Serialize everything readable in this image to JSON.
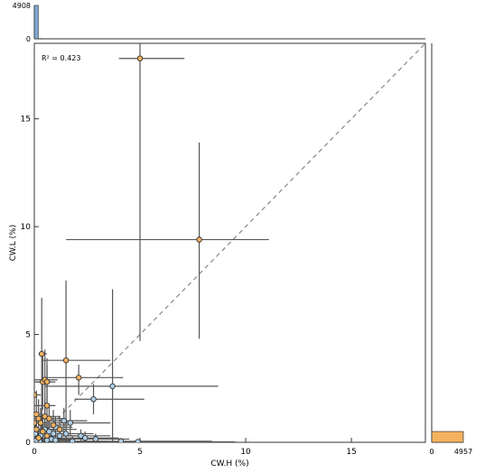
{
  "chart_data": [
    {
      "type": "scatter",
      "xlabel": "CW.H (%)",
      "ylabel": "CW.L (%)",
      "annotation": "R² = 0.423",
      "xlim": [
        0,
        18.5
      ],
      "ylim": [
        0,
        18.5
      ],
      "xticks": [
        0,
        5,
        10,
        15
      ],
      "yticks": [
        0,
        5,
        10,
        15
      ],
      "xtick_labels": [
        "0",
        "5",
        "10",
        "15"
      ],
      "ytick_labels": [
        "0",
        "5",
        "10",
        "15"
      ],
      "identity_line": true,
      "identity_line_style": "dashed",
      "grid": false,
      "colors": {
        "orange": "#f5b25e",
        "blue": "#aecfe8",
        "errorbar": "#555555",
        "marker_edge": "#333333",
        "identity": "#888888"
      },
      "points": [
        {
          "x": 5.0,
          "y": 17.8,
          "xerr": [
            4.0,
            7.1
          ],
          "yerr": [
            4.7,
            18.5
          ],
          "color": "orange"
        },
        {
          "x": 7.8,
          "y": 9.4,
          "xerr": [
            1.5,
            11.1
          ],
          "yerr": [
            4.8,
            13.9
          ],
          "color": "orange"
        },
        {
          "x": 1.5,
          "y": 3.8,
          "xerr": [
            0.4,
            3.6
          ],
          "yerr": [
            0.0,
            7.5
          ],
          "color": "orange"
        },
        {
          "x": 0.35,
          "y": 4.1,
          "xerr": [
            0.2,
            0.6
          ],
          "yerr": [
            0.0,
            6.7
          ],
          "color": "orange"
        },
        {
          "x": 2.1,
          "y": 3.0,
          "xerr": [
            0.5,
            4.2
          ],
          "yerr": [
            2.2,
            3.6
          ],
          "color": "orange"
        },
        {
          "x": 0.4,
          "y": 2.8,
          "xerr": [
            0.0,
            0.8
          ],
          "yerr": [
            1.5,
            4.2
          ],
          "color": "orange"
        },
        {
          "x": 0.5,
          "y": 2.9,
          "xerr": [
            0.0,
            1.1
          ],
          "yerr": [
            0.4,
            4.3
          ],
          "color": "orange"
        },
        {
          "x": 0.6,
          "y": 2.8,
          "xerr": [
            0.1,
            1.0
          ],
          "yerr": [
            1.6,
            3.9
          ],
          "color": "orange"
        },
        {
          "x": 0.6,
          "y": 1.7,
          "xerr": [
            0.0,
            1.0
          ],
          "yerr": [
            0.3,
            3.6
          ],
          "color": "orange"
        },
        {
          "x": 0.0,
          "y": 2.2,
          "xerr": [
            0.0,
            0.3
          ],
          "yerr": [
            0.5,
            3.2
          ],
          "color": "orange"
        },
        {
          "x": 0.1,
          "y": 1.3,
          "xerr": [
            0.0,
            0.4
          ],
          "yerr": [
            0.0,
            2.4
          ],
          "color": "orange"
        },
        {
          "x": 0.2,
          "y": 1.1,
          "xerr": [
            0.0,
            0.5
          ],
          "yerr": [
            0.0,
            2.0
          ],
          "color": "orange"
        },
        {
          "x": 0.3,
          "y": 0.9,
          "xerr": [
            0.0,
            0.7
          ],
          "yerr": [
            0.2,
            1.6
          ],
          "color": "orange"
        },
        {
          "x": 0.5,
          "y": 1.2,
          "xerr": [
            0.0,
            1.2
          ],
          "yerr": [
            0.4,
            2.0
          ],
          "color": "orange"
        },
        {
          "x": 0.7,
          "y": 1.1,
          "xerr": [
            0.1,
            1.4
          ],
          "yerr": [
            0.3,
            1.8
          ],
          "color": "orange"
        },
        {
          "x": 0.9,
          "y": 0.8,
          "xerr": [
            0.2,
            1.6
          ],
          "yerr": [
            0.1,
            1.5
          ],
          "color": "orange"
        },
        {
          "x": 0.1,
          "y": 0.6,
          "xerr": [
            0.0,
            0.4
          ],
          "yerr": [
            0.0,
            1.2
          ],
          "color": "orange"
        },
        {
          "x": 0.4,
          "y": 0.5,
          "xerr": [
            0.0,
            0.9
          ],
          "yerr": [
            0.0,
            1.1
          ],
          "color": "orange"
        },
        {
          "x": 0.6,
          "y": 0.3,
          "xerr": [
            0.0,
            1.1
          ],
          "yerr": [
            0.0,
            0.8
          ],
          "color": "orange"
        },
        {
          "x": 0.2,
          "y": 0.2,
          "xerr": [
            0.0,
            0.6
          ],
          "yerr": [
            0.0,
            0.6
          ],
          "color": "orange"
        },
        {
          "x": 0.0,
          "y": 0.9,
          "xerr": [
            0.0,
            0.3
          ],
          "yerr": [
            0.2,
            1.6
          ],
          "color": "orange"
        },
        {
          "x": 1.2,
          "y": 0.6,
          "xerr": [
            0.4,
            2.0
          ],
          "yerr": [
            0.1,
            1.2
          ],
          "color": "orange"
        },
        {
          "x": 3.7,
          "y": 2.6,
          "xerr": [
            0.5,
            8.7
          ],
          "yerr": [
            0.0,
            7.1
          ],
          "color": "blue"
        },
        {
          "x": 2.8,
          "y": 2.0,
          "xerr": [
            1.9,
            5.2
          ],
          "yerr": [
            1.3,
            2.7
          ],
          "color": "blue"
        },
        {
          "x": 1.7,
          "y": 0.9,
          "xerr": [
            0.5,
            3.6
          ],
          "yerr": [
            0.3,
            1.5
          ],
          "color": "blue"
        },
        {
          "x": 1.4,
          "y": 1.0,
          "xerr": [
            0.6,
            2.5
          ],
          "yerr": [
            0.4,
            1.6
          ],
          "color": "blue"
        },
        {
          "x": 2.2,
          "y": 0.3,
          "xerr": [
            1.0,
            3.6
          ],
          "yerr": [
            0.0,
            0.6
          ],
          "color": "blue"
        },
        {
          "x": 2.4,
          "y": 0.2,
          "xerr": [
            1.0,
            4.0
          ],
          "yerr": [
            0.0,
            0.5
          ],
          "color": "blue"
        },
        {
          "x": 2.9,
          "y": 0.15,
          "xerr": [
            1.2,
            4.5
          ],
          "yerr": [
            0.0,
            0.4
          ],
          "color": "blue"
        },
        {
          "x": 4.1,
          "y": 0.05,
          "xerr": [
            2.0,
            8.4
          ],
          "yerr": [
            0.0,
            0.2
          ],
          "color": "blue"
        },
        {
          "x": 4.9,
          "y": 0.02,
          "xerr": [
            2.2,
            9.5
          ],
          "yerr": [
            0.0,
            0.1
          ],
          "color": "blue"
        },
        {
          "x": 1.8,
          "y": 0.05,
          "xerr": [
            0.4,
            3.5
          ],
          "yerr": [
            0.0,
            0.3
          ],
          "color": "blue"
        },
        {
          "x": 1.0,
          "y": 0.7,
          "xerr": [
            0.3,
            1.8
          ],
          "yerr": [
            0.2,
            1.2
          ],
          "color": "blue"
        },
        {
          "x": 1.2,
          "y": 0.3,
          "xerr": [
            0.2,
            2.1
          ],
          "yerr": [
            0.0,
            0.7
          ],
          "color": "blue"
        },
        {
          "x": 0.9,
          "y": 0.4,
          "xerr": [
            0.1,
            1.7
          ],
          "yerr": [
            0.0,
            0.9
          ],
          "color": "blue"
        },
        {
          "x": 0.8,
          "y": 0.15,
          "xerr": [
            0.0,
            1.5
          ],
          "yerr": [
            0.0,
            0.5
          ],
          "color": "blue"
        },
        {
          "x": 0.5,
          "y": 0.6,
          "xerr": [
            0.0,
            1.1
          ],
          "yerr": [
            0.0,
            1.2
          ],
          "color": "blue"
        },
        {
          "x": 0.6,
          "y": 0.1,
          "xerr": [
            0.0,
            1.2
          ],
          "yerr": [
            0.0,
            0.4
          ],
          "color": "blue"
        },
        {
          "x": 0.3,
          "y": 0.3,
          "xerr": [
            0.0,
            0.7
          ],
          "yerr": [
            0.0,
            0.8
          ],
          "color": "blue"
        },
        {
          "x": 0.25,
          "y": 0.05,
          "xerr": [
            0.0,
            0.6
          ],
          "yerr": [
            0.0,
            0.3
          ],
          "color": "blue"
        },
        {
          "x": 0.1,
          "y": 0.1,
          "xerr": [
            0.0,
            0.4
          ],
          "yerr": [
            0.0,
            0.4
          ],
          "color": "blue"
        },
        {
          "x": 0.05,
          "y": 0.4,
          "xerr": [
            0.0,
            0.3
          ],
          "yerr": [
            0.0,
            0.8
          ],
          "color": "blue"
        },
        {
          "x": 1.0,
          "y": 0.1,
          "xerr": [
            0.1,
            1.9
          ],
          "yerr": [
            0.0,
            0.4
          ],
          "color": "blue"
        },
        {
          "x": 1.5,
          "y": 0.4,
          "xerr": [
            0.3,
            2.8
          ],
          "yerr": [
            0.0,
            0.8
          ],
          "color": "blue"
        },
        {
          "x": 0.7,
          "y": 0.5,
          "xerr": [
            0.0,
            1.4
          ],
          "yerr": [
            0.1,
            1.0
          ],
          "color": "blue"
        }
      ]
    },
    {
      "type": "bar",
      "orientation": "vertical",
      "title": "",
      "ylim": [
        0,
        4908
      ],
      "yticks": [
        0,
        4908
      ],
      "ytick_labels": [
        "0",
        "4908"
      ],
      "bins_range": [
        0,
        18.5
      ],
      "values": [
        4908,
        30,
        8,
        4,
        2,
        1,
        1,
        0,
        0,
        0,
        0,
        0,
        0,
        0,
        0,
        0,
        0,
        0,
        0,
        0,
        0,
        0,
        0,
        0,
        0,
        0,
        0,
        0,
        0,
        0,
        0,
        0,
        0,
        0,
        0,
        0,
        0,
        0,
        0,
        0,
        0,
        0,
        0,
        0,
        0,
        0,
        0,
        0,
        0,
        0,
        0,
        0,
        0,
        0,
        0,
        0,
        0,
        0,
        0,
        0,
        0,
        0,
        0,
        0,
        0,
        0,
        0,
        0,
        0,
        0,
        0,
        0,
        0,
        0,
        0,
        0,
        0,
        0,
        0,
        0,
        0,
        0,
        0,
        0,
        0,
        0,
        0,
        0,
        0,
        0,
        0,
        0,
        0,
        0,
        0,
        0,
        0,
        0,
        0,
        0
      ],
      "color": "#7ea9d3"
    },
    {
      "type": "bar",
      "orientation": "horizontal",
      "title": "",
      "xlim": [
        0,
        4957
      ],
      "xticks": [
        0,
        4957
      ],
      "xtick_labels": [
        "0",
        "4957"
      ],
      "bins_range": [
        0,
        18.5
      ],
      "values": [
        4957,
        0,
        0,
        0,
        0,
        0,
        0,
        0,
        0,
        0,
        0,
        0,
        0,
        0,
        0,
        0,
        0,
        0,
        0,
        0,
        0,
        0,
        0,
        0,
        0,
        0,
        0,
        0,
        0,
        0,
        0,
        0,
        0,
        0,
        0,
        0,
        0
      ],
      "color": "#f5b25e"
    }
  ]
}
